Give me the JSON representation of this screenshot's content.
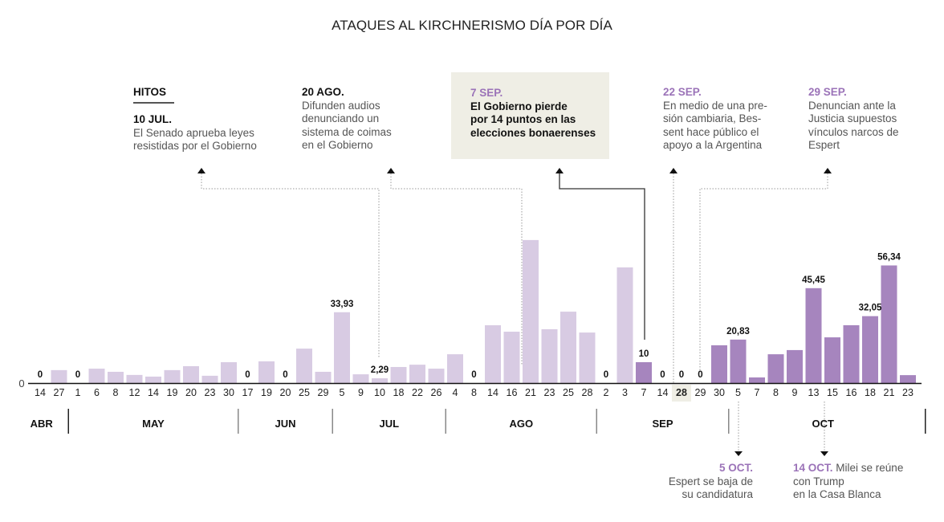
{
  "title": "ATAQUES AL KIRCHNERISMO DÍA POR DÍA",
  "hitos_label": "HITOS",
  "colors": {
    "before": "#d8cbe3",
    "after": "#a685be",
    "highlight_bg": "#efeee5",
    "accent": "#9b73b8"
  },
  "annotations": {
    "a1": {
      "date": "10 JUL.",
      "text": [
        "El Senado aprueba leyes",
        "resistidas por el Gobierno"
      ]
    },
    "a2": {
      "date": "20 AGO.",
      "text": [
        "Difunden audios",
        "denunciando un",
        "sistema de coimas",
        "en el Gobierno"
      ]
    },
    "a3": {
      "date": "7 SEP.",
      "text": [
        "El Gobierno pierde",
        "por 14 puntos en las",
        "elecciones bonaerenses"
      ]
    },
    "a4": {
      "date": "22 SEP.",
      "text": [
        "En medio de una pre-",
        "sión cambiaria, Bes-",
        "sent hace público el",
        "apoyo a la Argentina"
      ]
    },
    "a5": {
      "date": "29 SEP.",
      "text": [
        "Denuncian ante la",
        "Justicia supuestos",
        "vínculos narcos de",
        "Espert"
      ]
    },
    "b1": {
      "date": "5 OCT.",
      "text": [
        "Espert se baja de",
        "su candidatura"
      ]
    },
    "b2": {
      "date": "14 OCT.",
      "first": " Milei se reúne",
      "text": [
        "con Trump",
        "en la Casa Blanca"
      ]
    }
  },
  "chart_data": {
    "type": "bar",
    "title": "ATAQUES AL KIRCHNERISMO DÍA POR DÍA",
    "xlabel": "",
    "ylabel": "",
    "ylim": [
      0,
      70
    ],
    "y_ticks": [
      "0"
    ],
    "grid": false,
    "highlight_category_index": 34,
    "months": [
      {
        "label": "ABR",
        "count": 2
      },
      {
        "label": "MAY",
        "count": 9
      },
      {
        "label": "JUN",
        "count": 5
      },
      {
        "label": "JUL",
        "count": 6
      },
      {
        "label": "AGO",
        "count": 8
      },
      {
        "label": "SEP",
        "count": 7
      },
      {
        "label": "OCT",
        "count": 10
      }
    ],
    "categories": [
      "14",
      "27",
      "1",
      "6",
      "8",
      "12",
      "14",
      "19",
      "20",
      "23",
      "30",
      "17",
      "19",
      "20",
      "25",
      "29",
      "5",
      "9",
      "10",
      "18",
      "22",
      "26",
      "4",
      "8",
      "14",
      "16",
      "21",
      "23",
      "25",
      "28",
      "2",
      "3",
      "7",
      "14",
      "28",
      "29",
      "30",
      "5",
      "7",
      "8",
      "9",
      "13",
      "15",
      "16",
      "18",
      "21",
      "23"
    ],
    "values": [
      0,
      6.2,
      0,
      6.9,
      5.4,
      3.9,
      3.1,
      6.2,
      8.1,
      3.5,
      10,
      0,
      10.4,
      0,
      16.5,
      5.4,
      33.93,
      4.2,
      2.29,
      7.7,
      8.8,
      6.9,
      13.8,
      0,
      27.7,
      24.6,
      68.5,
      25.8,
      34.2,
      24.2,
      0,
      55.4,
      10,
      0,
      0,
      0,
      18.1,
      20.83,
      2.7,
      13.8,
      15.8,
      45.45,
      21.9,
      27.7,
      32.05,
      56.34,
      3.8
    ],
    "labels": [
      "0",
      "",
      "0",
      "",
      "",
      "",
      "",
      "",
      "",
      "",
      "",
      "0",
      "",
      "0",
      "",
      "",
      "33,93",
      "",
      "2,29",
      "",
      "",
      "",
      "",
      "0",
      "",
      "",
      "",
      "",
      "",
      "",
      "0",
      "",
      "10",
      "0",
      "0",
      "0",
      "",
      "20,83",
      "",
      "",
      "",
      "45,45",
      "",
      "",
      "32,05",
      "56,34",
      ""
    ],
    "series_split_index": 32,
    "series": [
      {
        "name": "Antes de las elecciones bonaerenses",
        "color": "#d8cbe3",
        "range": [
          0,
          31
        ]
      },
      {
        "name": "Desde las elecciones bonaerenses",
        "color": "#a685be",
        "range": [
          32,
          46
        ]
      }
    ]
  }
}
